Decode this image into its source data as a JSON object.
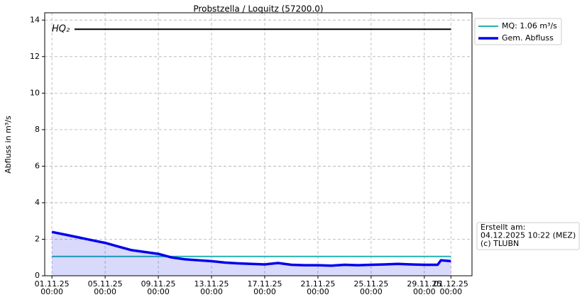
{
  "chart_data": {
    "type": "line",
    "title": "Probstzella / Loquitz (57200.0)",
    "y_label": "Abfluss in m³/s",
    "x": [
      "2025-11-01T00:00",
      "2025-11-02T00:00",
      "2025-11-03T00:00",
      "2025-11-04T00:00",
      "2025-11-05T00:00",
      "2025-11-06T00:00",
      "2025-11-07T00:00",
      "2025-11-08T00:00",
      "2025-11-09T00:00",
      "2025-11-10T00:00",
      "2025-11-11T00:00",
      "2025-11-12T00:00",
      "2025-11-13T00:00",
      "2025-11-14T00:00",
      "2025-11-15T00:00",
      "2025-11-16T00:00",
      "2025-11-17T00:00",
      "2025-11-18T00:00",
      "2025-11-19T00:00",
      "2025-11-20T00:00",
      "2025-11-21T00:00",
      "2025-11-22T00:00",
      "2025-11-23T00:00",
      "2025-11-24T00:00",
      "2025-11-25T00:00",
      "2025-11-26T00:00",
      "2025-11-27T00:00",
      "2025-11-28T00:00",
      "2025-11-29T00:00",
      "2025-11-30T00:00",
      "2025-11-30T06:00",
      "2025-12-01T00:00"
    ],
    "series": [
      {
        "name": "MQ: 1.06 m³/s",
        "color": "#20b2b2",
        "width": 2,
        "fill": false,
        "values": [
          1.06,
          1.06,
          1.06,
          1.06,
          1.06,
          1.06,
          1.06,
          1.06,
          1.06,
          1.06,
          1.06,
          1.06,
          1.06,
          1.06,
          1.06,
          1.06,
          1.06,
          1.06,
          1.06,
          1.06,
          1.06,
          1.06,
          1.06,
          1.06,
          1.06,
          1.06,
          1.06,
          1.06,
          1.06,
          1.06,
          1.06,
          1.06
        ]
      },
      {
        "name": "Gem. Abfluss",
        "color": "#0000ee",
        "width": 3.5,
        "fill": true,
        "values": [
          2.4,
          2.25,
          2.1,
          1.95,
          1.8,
          1.6,
          1.4,
          1.3,
          1.2,
          1.0,
          0.9,
          0.85,
          0.8,
          0.72,
          0.68,
          0.65,
          0.62,
          0.7,
          0.6,
          0.58,
          0.58,
          0.55,
          0.6,
          0.58,
          0.6,
          0.62,
          0.65,
          0.62,
          0.6,
          0.6,
          0.85,
          0.8
        ]
      }
    ],
    "reference_lines": [
      {
        "label": "HQ₂",
        "value": 13.5,
        "color": "#000000"
      }
    ],
    "xlim": [
      "2025-10-31T11:00",
      "2025-12-02T14:00"
    ],
    "xticks": [
      {
        "value": "2025-11-01T00:00",
        "label": "01.11.25\n00:00"
      },
      {
        "value": "2025-11-05T00:00",
        "label": "05.11.25\n00:00"
      },
      {
        "value": "2025-11-09T00:00",
        "label": "09.11.25\n00:00"
      },
      {
        "value": "2025-11-13T00:00",
        "label": "13.11.25\n00:00"
      },
      {
        "value": "2025-11-17T00:00",
        "label": "17.11.25\n00:00"
      },
      {
        "value": "2025-11-21T00:00",
        "label": "21.11.25\n00:00"
      },
      {
        "value": "2025-11-25T00:00",
        "label": "25.11.25\n00:00"
      },
      {
        "value": "2025-11-29T00:00",
        "label": "29.11.25\n00:00"
      },
      {
        "value": "2025-12-01T00:00",
        "label": "01.12.25\n00:00"
      }
    ],
    "ylim": [
      0,
      14.4
    ],
    "yticks": [
      0,
      2,
      4,
      6,
      8,
      10,
      12,
      14
    ],
    "grid": true,
    "legend": "outside-upper-right",
    "info_box": [
      "Erstellt am:",
      "04.12.2025 10:22 (MEZ)",
      "(c) TLUBN"
    ]
  }
}
